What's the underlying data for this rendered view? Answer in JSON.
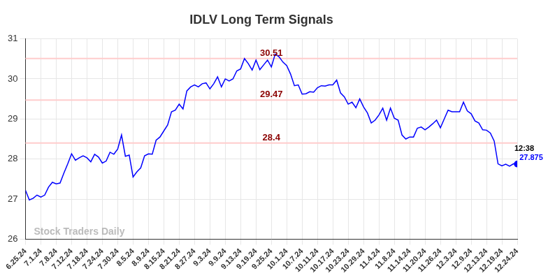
{
  "chart_data": {
    "type": "line",
    "title": "IDLV Long Term Signals",
    "watermark": "Stock Traders Daily",
    "categories": [
      "6.25.24",
      null,
      null,
      null,
      "7.1.24",
      null,
      null,
      null,
      "7.8.24",
      null,
      null,
      null,
      "7.12.24",
      null,
      null,
      null,
      "7.18.24",
      null,
      null,
      null,
      "7.24.24",
      null,
      null,
      null,
      "7.30.24",
      null,
      null,
      null,
      "8.5.24",
      null,
      null,
      null,
      "8.9.24",
      null,
      null,
      null,
      "8.15.24",
      null,
      null,
      null,
      "8.21.24",
      null,
      null,
      null,
      "8.27.24",
      null,
      null,
      null,
      "9.3.24",
      null,
      null,
      null,
      "9.9.24",
      null,
      null,
      null,
      "9.13.24",
      null,
      null,
      null,
      "9.19.24",
      null,
      null,
      null,
      "9.25.24",
      null,
      null,
      null,
      "10.1.24",
      null,
      null,
      null,
      "10.7.24",
      null,
      null,
      null,
      "10.11.24",
      null,
      null,
      null,
      "10.17.24",
      null,
      null,
      null,
      "10.23.24",
      null,
      null,
      null,
      "10.29.24",
      null,
      null,
      null,
      "11.4.24",
      null,
      null,
      null,
      "11.8.24",
      null,
      null,
      null,
      "11.14.24",
      null,
      null,
      null,
      "11.20.24",
      null,
      null,
      null,
      "11.26.24",
      null,
      null,
      null,
      "12.3.24",
      null,
      null,
      null,
      "12.9.24",
      null,
      null,
      null,
      "12.13.24",
      null,
      null,
      null,
      "12.19.24",
      null,
      null,
      null,
      "12.24.24"
    ],
    "values": [
      27.22,
      26.98,
      27.02,
      27.1,
      27.05,
      27.1,
      27.3,
      27.42,
      27.38,
      27.4,
      27.65,
      27.88,
      28.13,
      27.97,
      28.03,
      28.08,
      28.03,
      27.93,
      28.12,
      28.05,
      27.9,
      27.95,
      28.17,
      28.12,
      28.25,
      28.6,
      28.07,
      28.1,
      27.55,
      27.68,
      27.78,
      28.08,
      28.13,
      28.12,
      28.47,
      28.55,
      28.7,
      28.85,
      29.18,
      29.22,
      29.37,
      29.25,
      29.7,
      29.8,
      29.85,
      29.8,
      29.88,
      29.9,
      29.75,
      29.88,
      30.05,
      29.8,
      30.0,
      29.95,
      30.0,
      30.2,
      30.25,
      30.51,
      30.38,
      30.22,
      30.47,
      30.23,
      30.35,
      30.47,
      30.3,
      30.62,
      30.55,
      30.42,
      30.33,
      30.12,
      29.83,
      29.85,
      29.62,
      29.63,
      29.68,
      29.67,
      29.78,
      29.83,
      29.82,
      29.85,
      29.85,
      29.97,
      29.65,
      29.55,
      29.37,
      29.42,
      29.28,
      29.5,
      29.3,
      29.15,
      28.9,
      28.97,
      29.1,
      29.27,
      28.97,
      29.27,
      29.02,
      28.97,
      28.6,
      28.5,
      28.55,
      28.55,
      28.77,
      28.8,
      28.73,
      28.8,
      28.88,
      28.97,
      28.78,
      29.0,
      29.22,
      29.18,
      29.18,
      29.18,
      29.42,
      29.2,
      29.13,
      28.95,
      28.9,
      28.73,
      28.72,
      28.65,
      28.45,
      27.88,
      27.83,
      27.87,
      27.82,
      27.88,
      27.875
    ],
    "color": "#0000ff",
    "ylim": [
      26,
      31
    ],
    "yticks": [
      26,
      27,
      28,
      29,
      30,
      31
    ],
    "grid": true,
    "annotations": [
      {
        "value": 30.51,
        "label": "30.51"
      },
      {
        "value": 29.47,
        "label": "29.47"
      },
      {
        "value": 28.4,
        "label": "28.4"
      }
    ],
    "end_annotation": {
      "text": "12:38",
      "value": 27.875
    }
  }
}
